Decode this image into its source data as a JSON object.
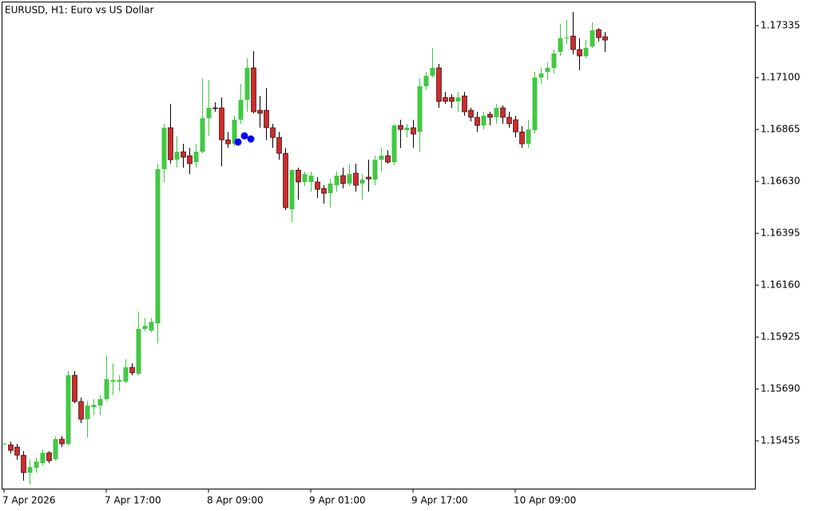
{
  "chart_data": {
    "type": "candlestick",
    "title": "EURUSD, H1:  Euro vs US Dollar",
    "up_color": "#41c842",
    "down_color": "#d12a2a",
    "marker_color": "#0000ff",
    "categories": [
      "7 Apr 2026",
      null,
      null,
      null,
      null,
      null,
      null,
      null,
      null,
      null,
      null,
      null,
      null,
      null,
      null,
      null,
      "7 Apr 17:00",
      null,
      null,
      null,
      null,
      null,
      null,
      null,
      null,
      null,
      null,
      null,
      null,
      null,
      null,
      null,
      "8 Apr 09:00",
      null,
      null,
      null,
      null,
      null,
      null,
      null,
      null,
      null,
      null,
      null,
      null,
      null,
      null,
      null,
      "9 Apr 01:00",
      null,
      null,
      null,
      null,
      null,
      null,
      null,
      null,
      null,
      null,
      null,
      null,
      null,
      null,
      null,
      "9 Apr 17:00",
      null,
      null,
      null,
      null,
      null,
      null,
      null,
      null,
      null,
      null,
      null,
      null,
      null,
      null,
      null,
      "10 Apr 09:00",
      null,
      null,
      null,
      null,
      null,
      null,
      null,
      null,
      null,
      null,
      null,
      null,
      null,
      null
    ],
    "open": [
      1.15441,
      1.15437,
      1.15427,
      1.1539,
      1.15311,
      1.15333,
      1.15354,
      1.15401,
      1.15372,
      1.15463,
      1.15441,
      1.15752,
      1.15633,
      1.15553,
      1.15607,
      1.15615,
      1.15644,
      1.15723,
      1.15723,
      1.15723,
      1.15788,
      1.15759,
      1.15962,
      1.15954,
      1.15987,
      1.16685,
      1.16873,
      1.16728,
      1.16764,
      1.16746,
      1.16717,
      1.16764,
      1.16916,
      1.16963,
      1.16963,
      1.16818,
      1.168,
      1.16909,
      1.16999,
      1.17144,
      1.16952,
      1.16952,
      1.16873,
      1.16829,
      1.16757,
      1.16504,
      1.16681,
      1.16627,
      1.16627,
      1.16627,
      1.16598,
      1.16576,
      1.16612,
      1.16656,
      1.1662,
      1.16667,
      1.1662,
      1.16649,
      1.16638,
      1.16728,
      1.16746,
      1.16717,
      1.16883,
      1.16862,
      1.16873,
      1.16854,
      1.17061,
      1.17108,
      1.17144,
      1.1701,
      1.1701,
      1.16992,
      1.17017,
      1.16952,
      1.1692,
      1.16883,
      1.16934,
      1.1692,
      1.16963,
      1.1692,
      1.16909,
      1.16854,
      1.168,
      1.16862,
      1.171,
      1.17126,
      1.17144,
      1.17216,
      1.17278,
      1.17288,
      1.17227,
      1.17198,
      1.17241,
      1.17317,
      1.17285
    ],
    "high": [
      1.15445,
      1.15452,
      1.15441,
      1.15408,
      1.15372,
      1.1538,
      1.15416,
      1.15408,
      1.15474,
      1.15477,
      1.1577,
      1.1577,
      1.15651,
      1.15636,
      1.15644,
      1.15662,
      1.15842,
      1.15806,
      1.15752,
      1.15824,
      1.15806,
      1.16041,
      1.16012,
      1.16012,
      1.1671,
      1.16891,
      1.16981,
      1.16836,
      1.168,
      1.16782,
      1.168,
      1.17097,
      1.17089,
      1.16988,
      1.1701,
      1.16854,
      1.16927,
      1.17071,
      1.17187,
      1.1722,
      1.17017,
      1.17053,
      1.16891,
      1.16854,
      1.16782,
      1.16685,
      1.16692,
      1.16674,
      1.16674,
      1.16649,
      1.16612,
      1.16641,
      1.16674,
      1.16692,
      1.1671,
      1.1671,
      1.16663,
      1.16728,
      1.16746,
      1.16782,
      1.16771,
      1.16891,
      1.16909,
      1.16891,
      1.16909,
      1.17097,
      1.17126,
      1.17234,
      1.17162,
      1.17035,
      1.17024,
      1.17035,
      1.17035,
      1.16963,
      1.16945,
      1.16945,
      1.16945,
      1.16981,
      1.16974,
      1.16945,
      1.16927,
      1.1688,
      1.16909,
      1.17126,
      1.17144,
      1.17169,
      1.17227,
      1.17343,
      1.17361,
      1.17397,
      1.17278,
      1.1727,
      1.1735,
      1.17324,
      1.17306
    ],
    "low": [
      1.15437,
      1.15398,
      1.15369,
      1.15275,
      1.15257,
      1.15311,
      1.15343,
      1.15354,
      1.15365,
      1.15427,
      1.15434,
      1.15625,
      1.15535,
      1.1547,
      1.15571,
      1.15571,
      1.15636,
      1.15662,
      1.1568,
      1.15716,
      1.15752,
      1.15752,
      1.15951,
      1.15947,
      1.15896,
      1.16627,
      1.1671,
      1.16692,
      1.16692,
      1.16663,
      1.16692,
      1.16757,
      1.16836,
      1.16945,
      1.16699,
      1.16782,
      1.16789,
      1.16891,
      1.16945,
      1.16938,
      1.16873,
      1.16818,
      1.16782,
      1.16728,
      1.165,
      1.16446,
      1.16547,
      1.16609,
      1.16583,
      1.16554,
      1.16529,
      1.16511,
      1.16583,
      1.16598,
      1.16609,
      1.16583,
      1.16547,
      1.16583,
      1.16612,
      1.16674,
      1.1671,
      1.16703,
      1.16782,
      1.16829,
      1.16782,
      1.16764,
      1.17046,
      1.171,
      1.16963,
      1.16981,
      1.16963,
      1.16945,
      1.16927,
      1.16901,
      1.16854,
      1.16865,
      1.16883,
      1.16891,
      1.16891,
      1.16873,
      1.16829,
      1.16782,
      1.16782,
      1.16847,
      1.17071,
      1.17089,
      1.17118,
      1.17198,
      1.17252,
      1.17205,
      1.17133,
      1.17187,
      1.17234,
      1.17263,
      1.17216
    ],
    "close": [
      1.15443,
      1.15412,
      1.1539,
      1.15311,
      1.15336,
      1.15361,
      1.15401,
      1.15365,
      1.15463,
      1.15441,
      1.15752,
      1.15633,
      1.15553,
      1.15615,
      1.15618,
      1.15644,
      1.15734,
      1.1573,
      1.1573,
      1.15788,
      1.15763,
      1.15962,
      1.15976,
      1.15994,
      1.16685,
      1.16873,
      1.16728,
      1.16764,
      1.16739,
      1.1671,
      1.16764,
      1.16916,
      1.16963,
      1.16959,
      1.16818,
      1.168,
      1.16909,
      1.16999,
      1.17144,
      1.16945,
      1.16938,
      1.16873,
      1.16829,
      1.16757,
      1.16511,
      1.16681,
      1.16627,
      1.16663,
      1.16656,
      1.16594,
      1.16576,
      1.1662,
      1.16656,
      1.1662,
      1.16663,
      1.16612,
      1.16638,
      1.16641,
      1.16728,
      1.16746,
      1.16717,
      1.16883,
      1.16865,
      1.16873,
      1.16844,
      1.17061,
      1.17108,
      1.17144,
      1.16992,
      1.16992,
      1.16992,
      1.1701,
      1.16945,
      1.1692,
      1.16883,
      1.16927,
      1.1692,
      1.16963,
      1.1692,
      1.16891,
      1.16854,
      1.168,
      1.16865,
      1.171,
      1.17118,
      1.17144,
      1.17209,
      1.17278,
      1.17281,
      1.17227,
      1.17198,
      1.17234,
      1.17314,
      1.17281,
      1.1727
    ],
    "markers": [
      null,
      null,
      null,
      null,
      null,
      null,
      null,
      null,
      null,
      null,
      null,
      null,
      null,
      null,
      null,
      null,
      null,
      null,
      null,
      null,
      null,
      null,
      null,
      null,
      null,
      null,
      null,
      null,
      null,
      null,
      null,
      null,
      null,
      null,
      null,
      null,
      null,
      1.16808,
      1.16836,
      1.16822,
      null,
      null,
      null,
      null,
      null,
      null,
      null,
      null,
      null,
      null,
      null,
      null,
      null,
      null,
      null,
      null,
      null,
      null,
      null,
      null,
      null,
      null,
      null,
      null,
      null,
      null,
      null,
      null,
      null,
      null,
      null,
      null,
      null,
      null,
      null,
      null,
      null,
      null,
      null,
      null,
      null,
      null,
      null,
      null,
      null,
      null,
      null,
      null,
      null,
      null,
      null,
      null,
      null,
      null,
      null
    ],
    "ylim": [
      1.15235,
      1.17444
    ],
    "yticks": [
      1.17335,
      {
        "value": 1.171,
        "label": "1.17100"
      },
      1.16865,
      {
        "value": 1.1663,
        "label": "1.16630"
      },
      1.16395,
      {
        "value": 1.1616,
        "label": "1.16160"
      },
      1.15925,
      {
        "value": 1.1569,
        "label": "1.15690"
      },
      1.15455
    ]
  }
}
